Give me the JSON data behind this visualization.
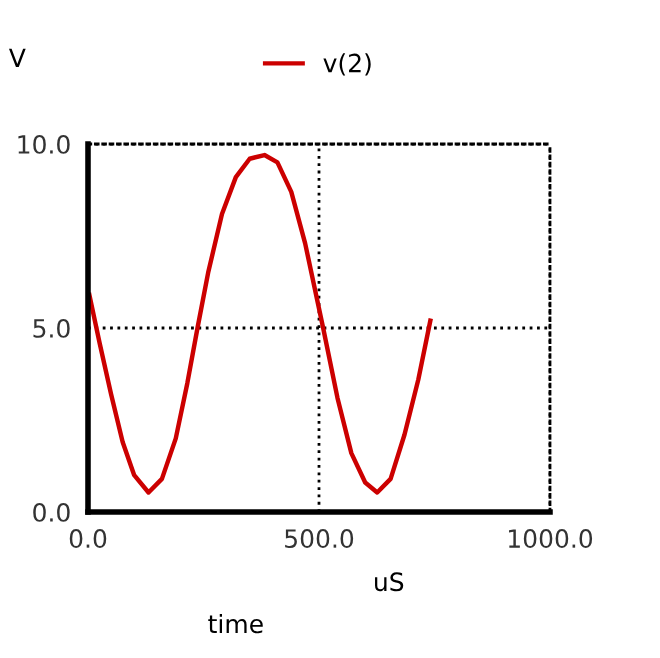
{
  "chart_data": {
    "type": "line",
    "xlabel": "time",
    "ylabel": "V",
    "annotations": [
      "uS"
    ],
    "x": [
      3,
      25,
      50,
      75,
      100,
      131,
      160,
      190,
      215,
      237,
      260,
      290,
      320,
      350,
      382,
      410,
      440,
      470,
      509,
      540,
      570,
      600,
      626,
      655,
      685,
      715,
      741
    ],
    "series": [
      {
        "name": "v(2)",
        "color": "#cc0000",
        "values": [
          5.9,
          4.6,
          3.2,
          1.9,
          1.0,
          0.53,
          0.9,
          2.0,
          3.5,
          5.0,
          6.5,
          8.1,
          9.1,
          9.6,
          9.7,
          9.5,
          8.7,
          7.3,
          5.0,
          3.1,
          1.6,
          0.8,
          0.53,
          0.9,
          2.1,
          3.6,
          5.2
        ]
      }
    ],
    "xlim": [
      0,
      1000
    ],
    "ylim": [
      0,
      10
    ],
    "xticks": [
      {
        "value": 0,
        "label": "0.0"
      },
      {
        "value": 500,
        "label": "500.0"
      },
      {
        "value": 1000,
        "label": "1000.0"
      }
    ],
    "yticks": [
      {
        "value": 0,
        "label": "0.0"
      },
      {
        "value": 5,
        "label": "5.0"
      },
      {
        "value": 10,
        "label": "10.0"
      }
    ],
    "grid": true,
    "legend": "top",
    "line_style": "solid",
    "marker": "none"
  }
}
